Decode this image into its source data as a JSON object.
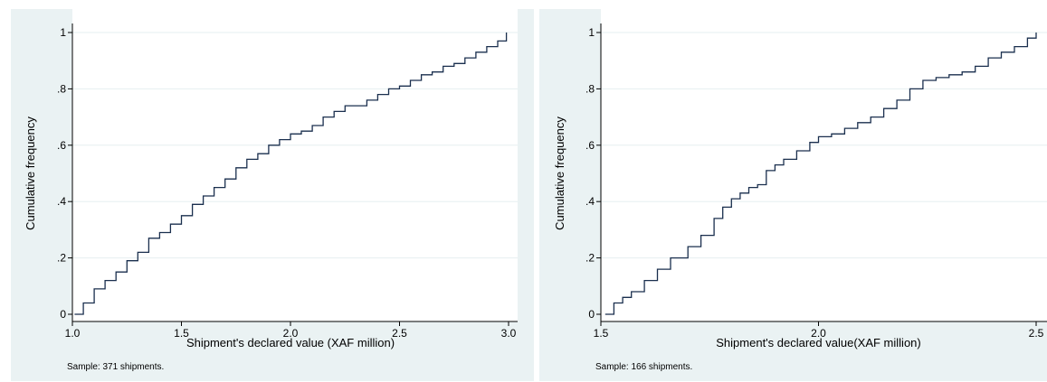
{
  "chart_data": [
    {
      "type": "line",
      "xlabel": "Shipment's declared value (XAF million)",
      "ylabel": "Cumulative frequency",
      "xlim": [
        1.0,
        3.0
      ],
      "ylim": [
        0,
        1
      ],
      "xticks": [
        "1.0",
        "1.5",
        "2.0",
        "2.5",
        "3.0"
      ],
      "xtick_values": [
        1.0,
        1.5,
        2.0,
        2.5,
        3.0
      ],
      "yticks": [
        "0",
        ".2",
        ".4",
        ".6",
        ".8",
        "1"
      ],
      "ytick_values": [
        0,
        0.2,
        0.4,
        0.6,
        0.8,
        1
      ],
      "grid": true,
      "step": true,
      "series": [
        {
          "x": [
            1.01,
            1.05,
            1.1,
            1.15,
            1.2,
            1.25,
            1.3,
            1.35,
            1.4,
            1.45,
            1.5,
            1.55,
            1.6,
            1.65,
            1.7,
            1.75,
            1.8,
            1.85,
            1.9,
            1.95,
            2.0,
            2.05,
            2.1,
            2.15,
            2.2,
            2.25,
            2.3,
            2.35,
            2.4,
            2.45,
            2.5,
            2.55,
            2.6,
            2.65,
            2.7,
            2.75,
            2.8,
            2.85,
            2.9,
            2.95,
            2.99
          ],
          "values": [
            0.0,
            0.04,
            0.09,
            0.12,
            0.15,
            0.19,
            0.22,
            0.27,
            0.29,
            0.32,
            0.35,
            0.39,
            0.42,
            0.45,
            0.48,
            0.52,
            0.55,
            0.57,
            0.6,
            0.62,
            0.64,
            0.65,
            0.67,
            0.7,
            0.72,
            0.74,
            0.74,
            0.76,
            0.78,
            0.8,
            0.81,
            0.83,
            0.85,
            0.86,
            0.88,
            0.89,
            0.91,
            0.93,
            0.95,
            0.97,
            1.0
          ]
        }
      ],
      "note": "Sample: 371 shipments."
    },
    {
      "type": "line",
      "xlabel": "Shipment's declared value(XAF million)",
      "ylabel": "Cumulative frequency",
      "xlim": [
        1.5,
        2.5
      ],
      "ylim": [
        0,
        1
      ],
      "xticks": [
        "1.5",
        "2.0",
        "2.5"
      ],
      "xtick_values": [
        1.5,
        2.0,
        2.5
      ],
      "yticks": [
        "0",
        ".2",
        ".4",
        ".6",
        ".8",
        "1"
      ],
      "ytick_values": [
        0,
        0.2,
        0.4,
        0.6,
        0.8,
        1
      ],
      "grid": true,
      "step": true,
      "series": [
        {
          "x": [
            1.51,
            1.53,
            1.55,
            1.57,
            1.6,
            1.63,
            1.66,
            1.7,
            1.73,
            1.76,
            1.78,
            1.8,
            1.82,
            1.84,
            1.86,
            1.88,
            1.9,
            1.92,
            1.95,
            1.98,
            2.0,
            2.03,
            2.06,
            2.09,
            2.12,
            2.15,
            2.18,
            2.21,
            2.24,
            2.27,
            2.3,
            2.33,
            2.36,
            2.39,
            2.42,
            2.45,
            2.48,
            2.5
          ],
          "values": [
            0.0,
            0.04,
            0.06,
            0.08,
            0.12,
            0.16,
            0.2,
            0.24,
            0.28,
            0.34,
            0.38,
            0.41,
            0.43,
            0.45,
            0.46,
            0.51,
            0.53,
            0.55,
            0.58,
            0.61,
            0.63,
            0.64,
            0.66,
            0.68,
            0.7,
            0.73,
            0.76,
            0.8,
            0.83,
            0.84,
            0.85,
            0.86,
            0.88,
            0.91,
            0.93,
            0.95,
            0.98,
            1.0
          ]
        }
      ],
      "note": "Sample: 166 shipments."
    }
  ]
}
